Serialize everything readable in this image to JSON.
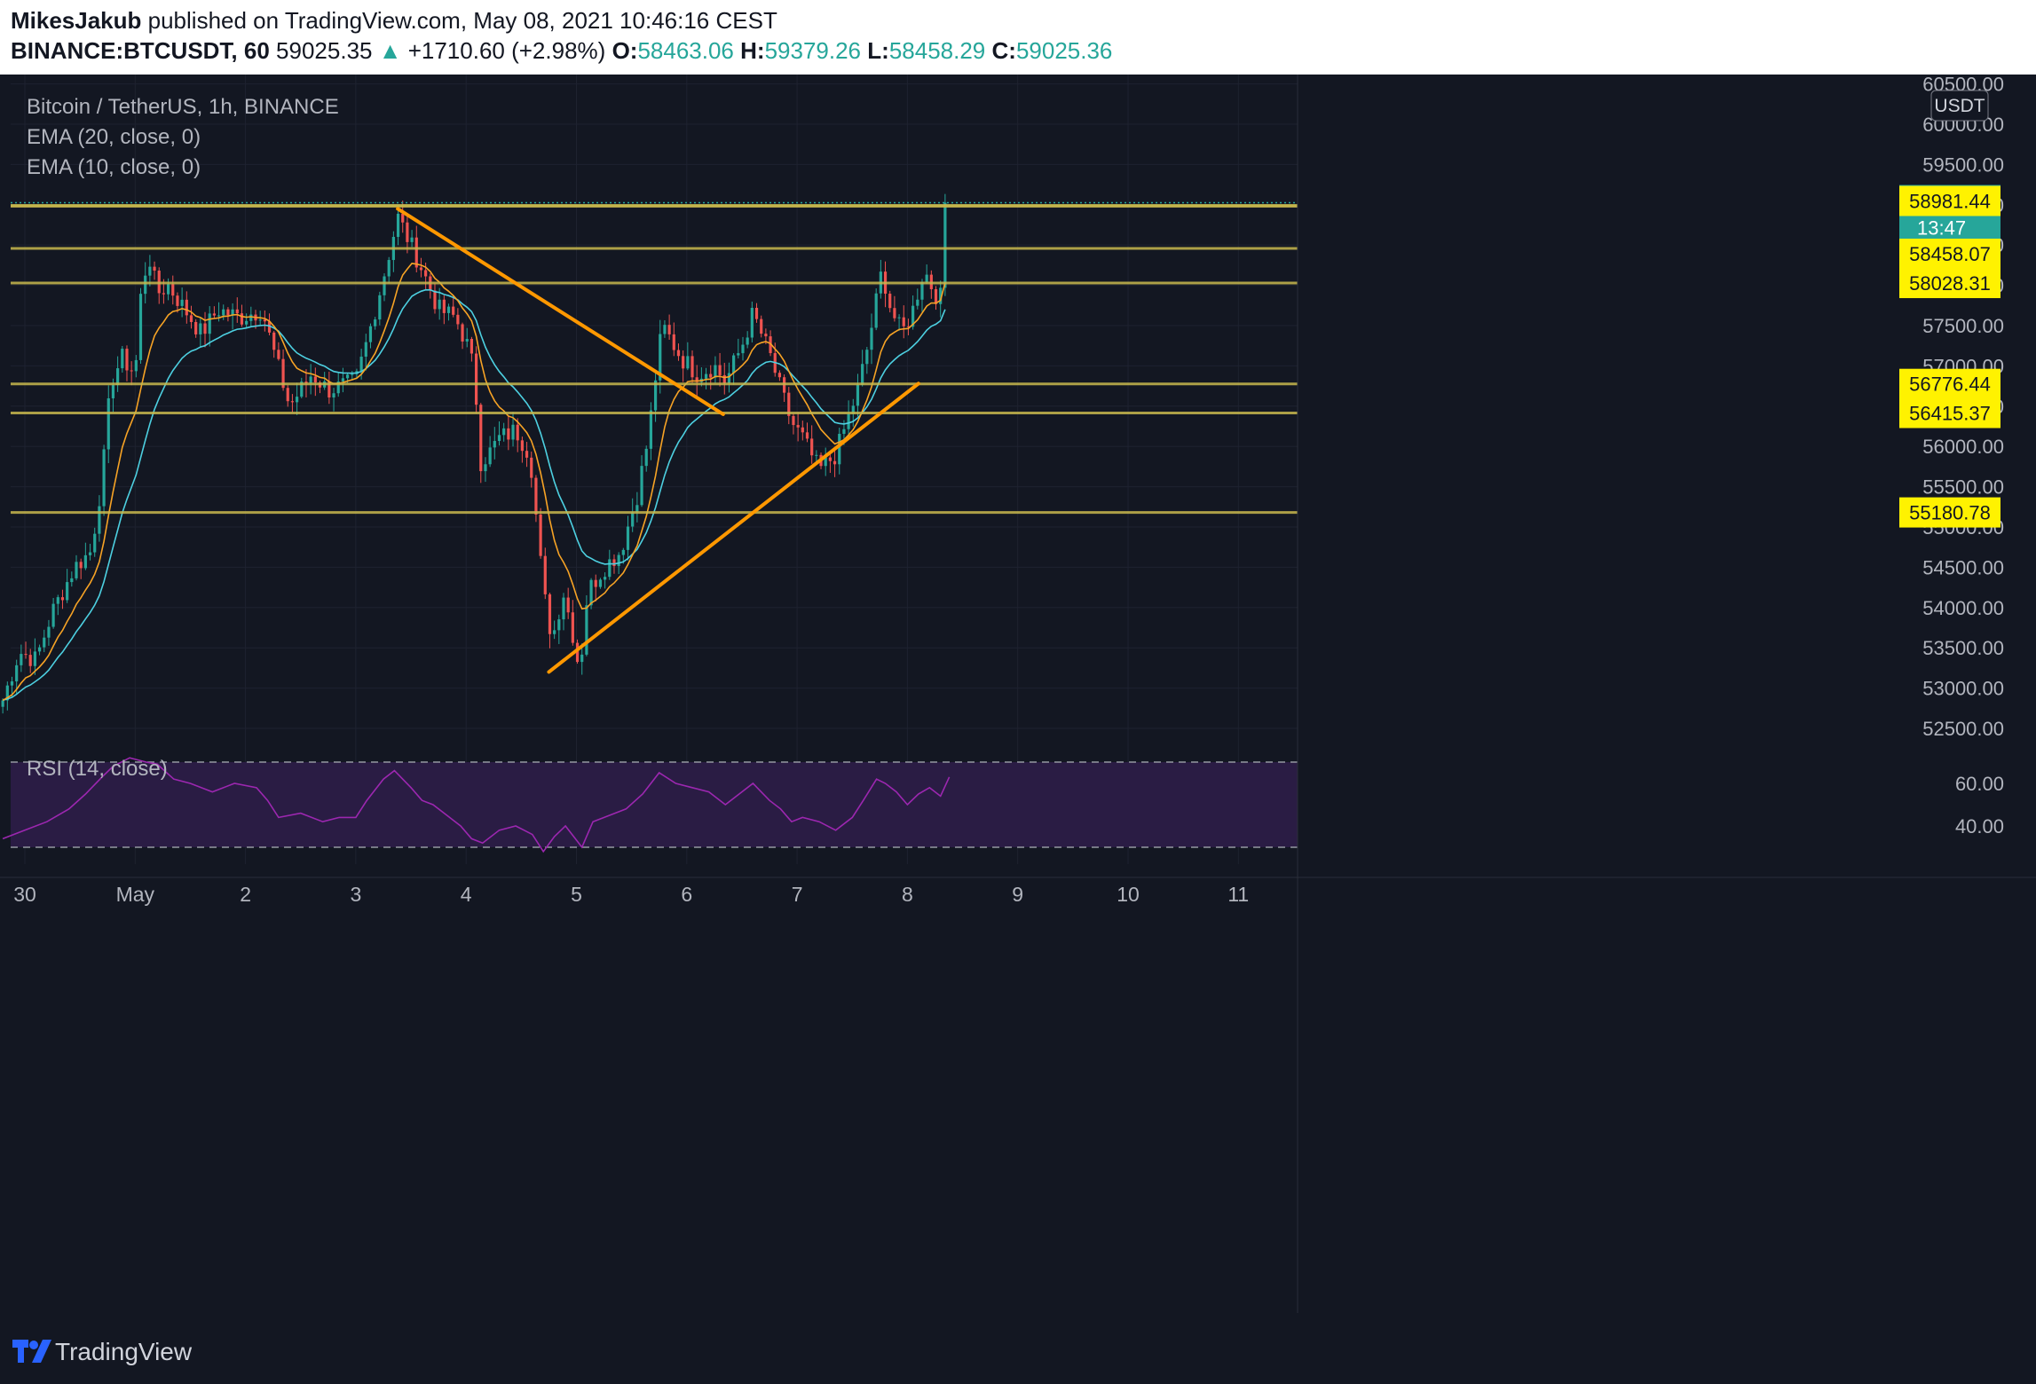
{
  "header": {
    "author": "MikesJakub",
    "published": "published on TradingView.com, May 08, 2021 10:46:16 CEST",
    "symbol": "BINANCE:BTCUSDT, 60",
    "price": "59025.35",
    "change": "+1710.60 (+2.98%)",
    "o_label": "O:",
    "o_value": "58463.06",
    "h_label": "H:",
    "h_value": "59379.26",
    "l_label": "L:",
    "l_value": "58458.29",
    "c_label": "C:",
    "c_value": "59025.36",
    "up_arrow": "▲"
  },
  "legend": {
    "title": "Bitcoin / TetherUS, 1h, BINANCE",
    "ema20": "EMA (20, close, 0)",
    "ema10": "EMA (10, close, 0)",
    "rsi": "RSI (14, close)"
  },
  "currency_badge": "USDT",
  "brand": "TradingView",
  "colors": {
    "background": "#131722",
    "bull": "#26a69a",
    "bear": "#ef5350",
    "ema20": "#4dd0e1",
    "ema10": "#f7a325",
    "level": "#c8b94e",
    "trendline": "#ff9800",
    "rsi": "#9c27b0",
    "rsi_band": "#2a1c44"
  },
  "chart_data": {
    "type": "candlestick",
    "title": "Bitcoin / TetherUS, 1h, BINANCE",
    "ylim": [
      52200,
      60600
    ],
    "y_ticks": [
      "60500.00",
      "60000.00",
      "59500.00",
      "59000.00",
      "58500.00",
      "58000.00",
      "57500.00",
      "57000.00",
      "56500.00",
      "56000.00",
      "55500.00",
      "55000.00",
      "54500.00",
      "54000.00",
      "53500.00",
      "53000.00",
      "52500.00"
    ],
    "x_ticks": [
      "30",
      "May",
      "2",
      "3",
      "4",
      "5",
      "6",
      "7",
      "8",
      "9",
      "10",
      "11"
    ],
    "x_tick_days": [
      0,
      1,
      2,
      3,
      4,
      5,
      6,
      7,
      8,
      9,
      10,
      11
    ],
    "last_price": "59025.36",
    "countdown": "13:47",
    "horizontal_levels": [
      {
        "value": 59025.36,
        "label": "59025.36"
      },
      {
        "value": 58981.44,
        "label": "58981.44"
      },
      {
        "value": 58458.07,
        "label": "58458.07"
      },
      {
        "value": 58028.31,
        "label": "58028.31"
      },
      {
        "value": 56776.44,
        "label": "56776.44"
      },
      {
        "value": 56415.37,
        "label": "56415.37"
      },
      {
        "value": 55180.78,
        "label": "55180.78"
      }
    ],
    "trendlines": [
      {
        "from": [
          3.38,
          58950
        ],
        "to": [
          6.33,
          56400
        ]
      },
      {
        "from": [
          4.75,
          53200
        ],
        "to": [
          8.1,
          56780
        ]
      }
    ],
    "close_path": [
      [
        -0.2,
        52850
      ],
      [
        -0.05,
        53450
      ],
      [
        0.1,
        53350
      ],
      [
        0.25,
        53950
      ],
      [
        0.45,
        54500
      ],
      [
        0.6,
        54700
      ],
      [
        0.7,
        55600
      ],
      [
        0.78,
        56800
      ],
      [
        0.88,
        57100
      ],
      [
        1.0,
        56900
      ],
      [
        1.05,
        57850
      ],
      [
        1.12,
        58400
      ],
      [
        1.2,
        57900
      ],
      [
        1.3,
        58000
      ],
      [
        1.45,
        57700
      ],
      [
        1.6,
        57400
      ],
      [
        1.75,
        57700
      ],
      [
        1.95,
        57600
      ],
      [
        2.15,
        57700
      ],
      [
        2.25,
        57200
      ],
      [
        2.4,
        56500
      ],
      [
        2.6,
        56900
      ],
      [
        2.75,
        56700
      ],
      [
        3.0,
        56800
      ],
      [
        3.1,
        57300
      ],
      [
        3.25,
        58100
      ],
      [
        3.38,
        58850
      ],
      [
        3.5,
        58500
      ],
      [
        3.6,
        58200
      ],
      [
        3.75,
        57700
      ],
      [
        3.9,
        57600
      ],
      [
        4.0,
        57300
      ],
      [
        4.08,
        56900
      ],
      [
        4.12,
        55800
      ],
      [
        4.2,
        55900
      ],
      [
        4.3,
        56100
      ],
      [
        4.45,
        56200
      ],
      [
        4.58,
        55900
      ],
      [
        4.7,
        54200
      ],
      [
        4.78,
        53600
      ],
      [
        4.88,
        54200
      ],
      [
        4.95,
        53800
      ],
      [
        5.03,
        53200
      ],
      [
        5.1,
        54200
      ],
      [
        5.25,
        54500
      ],
      [
        5.4,
        54700
      ],
      [
        5.55,
        55400
      ],
      [
        5.65,
        56100
      ],
      [
        5.72,
        56900
      ],
      [
        5.78,
        57500
      ],
      [
        5.95,
        57100
      ],
      [
        6.1,
        56900
      ],
      [
        6.25,
        57000
      ],
      [
        6.35,
        56800
      ],
      [
        6.5,
        57250
      ],
      [
        6.6,
        57650
      ],
      [
        6.75,
        57150
      ],
      [
        6.85,
        56700
      ],
      [
        6.95,
        56300
      ],
      [
        7.05,
        56100
      ],
      [
        7.2,
        55700
      ],
      [
        7.35,
        55900
      ],
      [
        7.45,
        56300
      ],
      [
        7.55,
        56700
      ],
      [
        7.65,
        57300
      ],
      [
        7.77,
        58200
      ],
      [
        7.85,
        57700
      ],
      [
        7.95,
        57400
      ],
      [
        8.05,
        57700
      ],
      [
        8.15,
        58200
      ],
      [
        8.25,
        57900
      ],
      [
        8.3,
        57850
      ],
      [
        8.38,
        59025
      ]
    ],
    "rsi_ylim": [
      22,
      72
    ],
    "rsi_ticks": [
      "60.00",
      "40.00"
    ],
    "rsi_bands": [
      70,
      30
    ],
    "rsi_path": [
      [
        -0.2,
        34
      ],
      [
        0.0,
        38
      ],
      [
        0.2,
        42
      ],
      [
        0.4,
        48
      ],
      [
        0.55,
        55
      ],
      [
        0.7,
        63
      ],
      [
        0.8,
        68
      ],
      [
        0.95,
        72
      ],
      [
        1.1,
        70
      ],
      [
        1.2,
        69
      ],
      [
        1.35,
        62
      ],
      [
        1.5,
        60
      ],
      [
        1.7,
        56
      ],
      [
        1.9,
        60
      ],
      [
        2.1,
        58
      ],
      [
        2.2,
        52
      ],
      [
        2.3,
        44
      ],
      [
        2.5,
        46
      ],
      [
        2.7,
        42
      ],
      [
        2.85,
        44
      ],
      [
        3.0,
        44
      ],
      [
        3.1,
        52
      ],
      [
        3.25,
        62
      ],
      [
        3.35,
        66
      ],
      [
        3.5,
        58
      ],
      [
        3.6,
        52
      ],
      [
        3.7,
        50
      ],
      [
        3.85,
        44
      ],
      [
        3.95,
        40
      ],
      [
        4.05,
        34
      ],
      [
        4.15,
        32
      ],
      [
        4.3,
        38
      ],
      [
        4.45,
        40
      ],
      [
        4.6,
        36
      ],
      [
        4.7,
        28
      ],
      [
        4.8,
        35
      ],
      [
        4.9,
        40
      ],
      [
        5.05,
        30
      ],
      [
        5.15,
        42
      ],
      [
        5.3,
        45
      ],
      [
        5.45,
        48
      ],
      [
        5.6,
        55
      ],
      [
        5.75,
        65
      ],
      [
        5.9,
        60
      ],
      [
        6.05,
        58
      ],
      [
        6.2,
        56
      ],
      [
        6.35,
        50
      ],
      [
        6.5,
        56
      ],
      [
        6.6,
        60
      ],
      [
        6.75,
        52
      ],
      [
        6.85,
        48
      ],
      [
        6.95,
        42
      ],
      [
        7.05,
        44
      ],
      [
        7.2,
        42
      ],
      [
        7.35,
        38
      ],
      [
        7.5,
        44
      ],
      [
        7.6,
        52
      ],
      [
        7.72,
        62
      ],
      [
        7.8,
        60
      ],
      [
        7.9,
        56
      ],
      [
        8.0,
        50
      ],
      [
        8.1,
        55
      ],
      [
        8.2,
        58
      ],
      [
        8.3,
        54
      ],
      [
        8.38,
        63
      ]
    ]
  }
}
